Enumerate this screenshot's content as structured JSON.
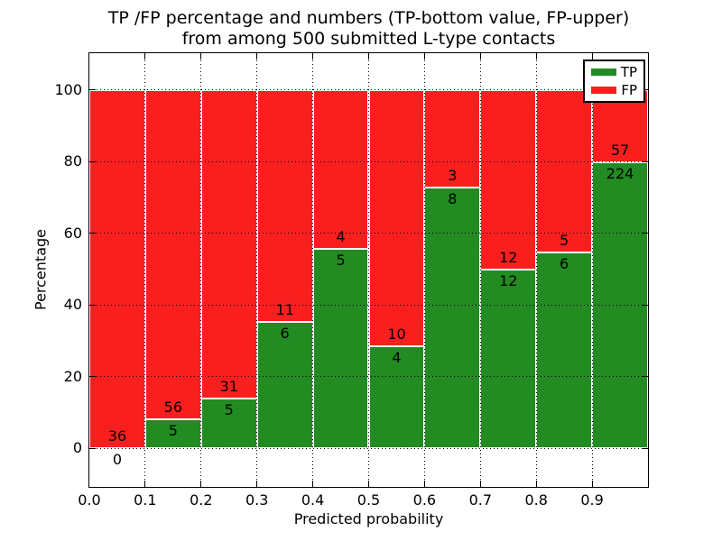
{
  "title": {
    "line1": "TP /FP percentage and numbers (TP-bottom value, FP-upper)",
    "line2": "from among 500 submitted L-type contacts"
  },
  "axes": {
    "xlabel": "Predicted probability",
    "ylabel": "Percentage",
    "x_tick_labels": [
      "0.0",
      "0.1",
      "0.2",
      "0.3",
      "0.4",
      "0.5",
      "0.6",
      "0.7",
      "0.8",
      "0.9"
    ],
    "y_tick_labels": [
      "0",
      "20",
      "40",
      "60",
      "80",
      "100"
    ],
    "y_tick_values": [
      0,
      20,
      40,
      60,
      80,
      100
    ]
  },
  "legend": {
    "items": [
      {
        "label": "TP",
        "color": "#228b22"
      },
      {
        "label": "FP",
        "color": "#fa1f1f"
      }
    ]
  },
  "colors": {
    "tp": "#228b22",
    "fp": "#fa1f1f",
    "grid": "#000000",
    "background": "#ffffff"
  },
  "chart_data": {
    "type": "bar",
    "stacked": true,
    "normalized_to": "percent of bin total (TP+FP = 100%)",
    "title": "TP /FP percentage and numbers (TP-bottom value, FP-upper) from among 500 submitted L-type contacts",
    "xlabel": "Predicted probability",
    "ylabel": "Percentage",
    "bin_edges": [
      0.0,
      0.1,
      0.2,
      0.3,
      0.4,
      0.5,
      0.6,
      0.7,
      0.8,
      0.9,
      1.0
    ],
    "series": [
      {
        "name": "TP",
        "counts": [
          0,
          5,
          5,
          6,
          5,
          4,
          8,
          12,
          6,
          224
        ]
      },
      {
        "name": "FP",
        "counts": [
          36,
          56,
          31,
          11,
          4,
          10,
          3,
          12,
          5,
          57
        ]
      }
    ],
    "tp_percent_of_bin": [
      0.0,
      8.2,
      13.9,
      35.3,
      55.6,
      28.6,
      72.7,
      50.0,
      54.5,
      79.7
    ],
    "total_contacts": 500,
    "xlim": [
      0.0,
      1.0
    ],
    "ylim": [
      -10.8,
      110.3
    ],
    "grid": true,
    "grid_linestyle": "dotted",
    "legend_position": "upper right"
  }
}
